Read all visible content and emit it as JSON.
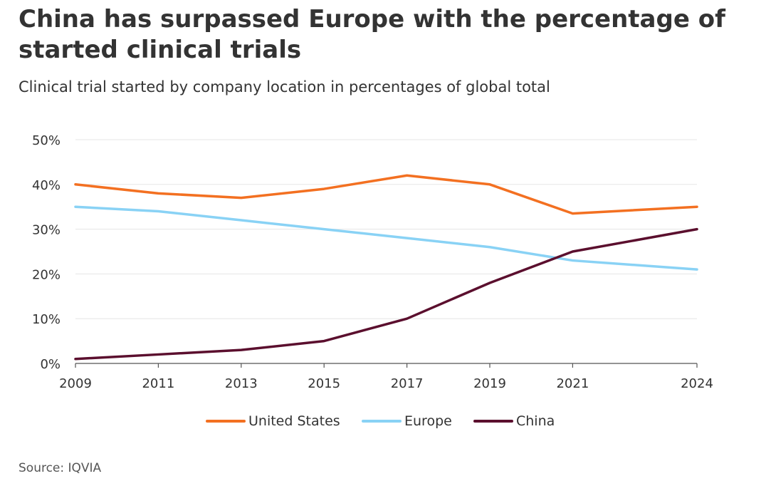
{
  "chart_data": {
    "type": "line",
    "title": "China has surpassed Europe with the percentage of started clinical trials",
    "subtitle": "Clinical trial started by company location in percentages of global total",
    "xlabel": "",
    "ylabel": "",
    "x": [
      2009,
      2011,
      2013,
      2015,
      2017,
      2019,
      2021,
      2024
    ],
    "x_tick_labels": [
      "2009",
      "2011",
      "2013",
      "2015",
      "2017",
      "2019",
      "2021",
      "2024"
    ],
    "xlim": [
      2009,
      2024
    ],
    "ylim": [
      0,
      50
    ],
    "y_ticks": [
      0,
      10,
      20,
      30,
      40,
      50
    ],
    "y_tick_labels": [
      "0%",
      "10%",
      "20%",
      "30%",
      "40%",
      "50%"
    ],
    "grid": true,
    "legend_position": "bottom-center",
    "series": [
      {
        "name": "United States",
        "color": "#f37021",
        "values": [
          40,
          38,
          37,
          39,
          42,
          40,
          33.5,
          35
        ]
      },
      {
        "name": "Europe",
        "color": "#89d2f5",
        "values": [
          35,
          34,
          32,
          30,
          28,
          26,
          23,
          21
        ]
      },
      {
        "name": "China",
        "color": "#5b0f2e",
        "values": [
          1,
          2,
          3,
          5,
          10,
          18,
          25,
          30
        ]
      }
    ],
    "source": "Source: IQVIA"
  }
}
